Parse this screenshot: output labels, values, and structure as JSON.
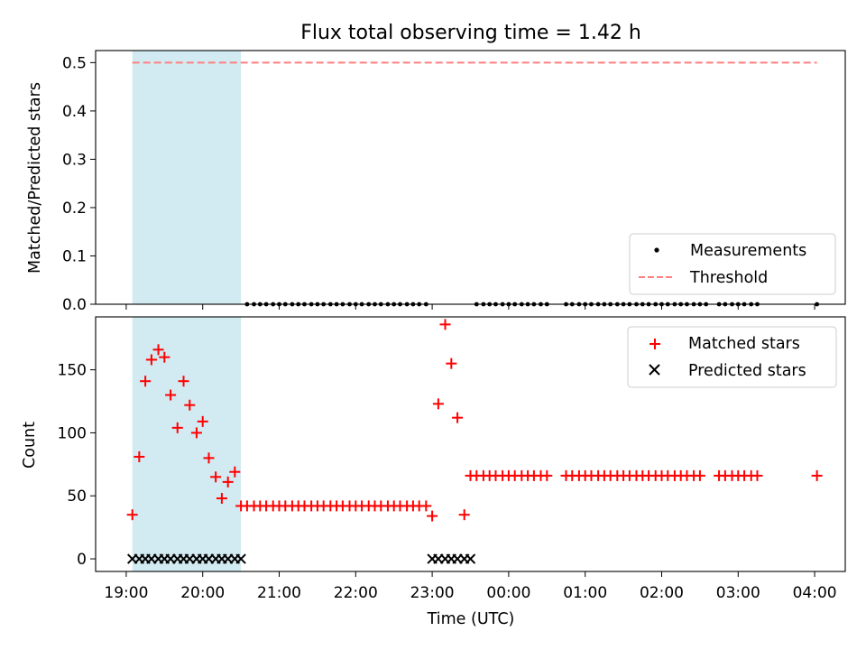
{
  "chart_data": [
    {
      "type": "scatter",
      "title": "Flux total observing time = 1.42 h",
      "xlabel": "",
      "ylabel": "Matched/Predicted stars",
      "ylim": [
        0,
        0.525
      ],
      "yticks": [
        0.0,
        0.1,
        0.2,
        0.3,
        0.4,
        0.5
      ],
      "ytick_labels": [
        "0.0",
        "0.1",
        "0.2",
        "0.3",
        "0.4",
        "0.5"
      ],
      "legend": [
        "Measurements",
        "Threshold"
      ],
      "legend_position": "lower-right",
      "shaded_interval": {
        "x_start": 19.08,
        "x_end": 20.5,
        "color": "#add8e6"
      },
      "series": [
        {
          "name": "Measurements",
          "marker": "dot",
          "color": "#000000",
          "x": [
            20.58,
            20.67,
            20.75,
            20.83,
            20.92,
            21.0,
            21.08,
            21.17,
            21.25,
            21.33,
            21.42,
            21.5,
            21.58,
            21.67,
            21.75,
            21.83,
            21.92,
            22.0,
            22.08,
            22.17,
            22.25,
            22.33,
            22.42,
            22.5,
            22.58,
            22.67,
            22.75,
            22.83,
            22.92,
            23.58,
            23.67,
            23.75,
            23.83,
            23.92,
            24.0,
            24.08,
            24.17,
            24.25,
            24.33,
            24.42,
            24.5,
            24.75,
            24.83,
            24.92,
            25.0,
            25.08,
            25.17,
            25.25,
            25.33,
            25.42,
            25.5,
            25.58,
            25.67,
            25.75,
            25.83,
            25.92,
            26.0,
            26.08,
            26.17,
            26.25,
            26.33,
            26.42,
            26.5,
            26.58,
            26.75,
            26.83,
            26.92,
            27.0,
            27.08,
            27.17,
            27.25,
            28.03
          ],
          "y": [
            0,
            0,
            0,
            0,
            0,
            0,
            0,
            0,
            0,
            0,
            0,
            0,
            0,
            0,
            0,
            0,
            0,
            0,
            0,
            0,
            0,
            0,
            0,
            0,
            0,
            0,
            0,
            0,
            0,
            0,
            0,
            0,
            0,
            0,
            0,
            0,
            0,
            0,
            0,
            0,
            0,
            0,
            0,
            0,
            0,
            0,
            0,
            0,
            0,
            0,
            0,
            0,
            0,
            0,
            0,
            0,
            0,
            0,
            0,
            0,
            0,
            0,
            0,
            0,
            0,
            0,
            0,
            0,
            0,
            0,
            0,
            0
          ]
        },
        {
          "name": "Threshold",
          "marker": "dashed-line",
          "color": "#ff7f7f",
          "x": [
            19.08,
            28.03
          ],
          "y": [
            0.5,
            0.5
          ]
        }
      ]
    },
    {
      "type": "scatter",
      "title": "",
      "xlabel": "Time (UTC)",
      "ylabel": "Count",
      "xlim": [
        18.6,
        28.4
      ],
      "ylim": [
        -10,
        192
      ],
      "yticks": [
        0,
        50,
        100,
        150
      ],
      "ytick_labels": [
        "0",
        "50",
        "100",
        "150"
      ],
      "xticks": [
        19,
        20,
        21,
        22,
        23,
        24,
        25,
        26,
        27,
        28
      ],
      "xtick_labels": [
        "19:00",
        "20:00",
        "21:00",
        "22:00",
        "23:00",
        "00:00",
        "01:00",
        "02:00",
        "03:00",
        "04:00"
      ],
      "legend": [
        "Matched stars",
        "Predicted stars"
      ],
      "legend_position": "top-right",
      "shaded_interval": {
        "x_start": 19.08,
        "x_end": 20.5,
        "color": "#add8e6"
      },
      "series": [
        {
          "name": "Matched stars",
          "marker": "plus",
          "color": "#ff0000",
          "x": [
            19.08,
            19.17,
            19.25,
            19.33,
            19.42,
            19.5,
            19.58,
            19.67,
            19.75,
            19.83,
            19.92,
            20.0,
            20.08,
            20.17,
            20.25,
            20.33,
            20.42,
            20.5,
            20.58,
            20.67,
            20.75,
            20.83,
            20.92,
            21.0,
            21.08,
            21.17,
            21.25,
            21.33,
            21.42,
            21.5,
            21.58,
            21.67,
            21.75,
            21.83,
            21.92,
            22.0,
            22.08,
            22.17,
            22.25,
            22.33,
            22.42,
            22.5,
            22.58,
            22.67,
            22.75,
            22.83,
            22.92,
            23.0,
            23.08,
            23.17,
            23.25,
            23.33,
            23.42,
            23.5,
            23.58,
            23.67,
            23.75,
            23.83,
            23.92,
            24.0,
            24.08,
            24.17,
            24.25,
            24.33,
            24.42,
            24.5,
            24.75,
            24.83,
            24.92,
            25.0,
            25.08,
            25.17,
            25.25,
            25.33,
            25.42,
            25.5,
            25.58,
            25.67,
            25.75,
            25.83,
            25.92,
            26.0,
            26.08,
            26.17,
            26.25,
            26.33,
            26.42,
            26.5,
            26.75,
            26.83,
            26.92,
            27.0,
            27.08,
            27.17,
            27.25,
            28.03
          ],
          "y": [
            35,
            81,
            141,
            158,
            166,
            160,
            130,
            104,
            141,
            122,
            100,
            109,
            80,
            65,
            48,
            61,
            69,
            42,
            42,
            42,
            42,
            42,
            42,
            42,
            42,
            42,
            42,
            42,
            42,
            42,
            42,
            42,
            42,
            42,
            42,
            42,
            42,
            42,
            42,
            42,
            42,
            42,
            42,
            42,
            42,
            42,
            42,
            34,
            123,
            186,
            155,
            112,
            35,
            66,
            66,
            66,
            66,
            66,
            66,
            66,
            66,
            66,
            66,
            66,
            66,
            66,
            66,
            66,
            66,
            66,
            66,
            66,
            66,
            66,
            66,
            66,
            66,
            66,
            66,
            66,
            66,
            66,
            66,
            66,
            66,
            66,
            66,
            66,
            66,
            66,
            66,
            66,
            66,
            66,
            66,
            66
          ]
        },
        {
          "name": "Predicted stars",
          "marker": "x",
          "color": "#000000",
          "x": [
            19.08,
            19.17,
            19.25,
            19.33,
            19.42,
            19.5,
            19.58,
            19.67,
            19.75,
            19.83,
            19.92,
            20.0,
            20.08,
            20.17,
            20.25,
            20.33,
            20.42,
            20.5,
            23.0,
            23.08,
            23.17,
            23.25,
            23.33,
            23.42,
            23.5
          ],
          "y": [
            0,
            0,
            0,
            0,
            0,
            0,
            0,
            0,
            0,
            0,
            0,
            0,
            0,
            0,
            0,
            0,
            0,
            0,
            0,
            0,
            0,
            0,
            0,
            0,
            0
          ]
        }
      ]
    }
  ]
}
